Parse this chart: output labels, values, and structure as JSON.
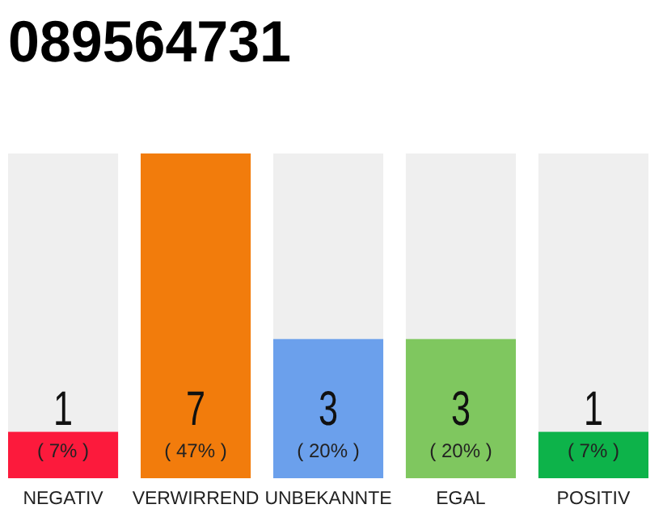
{
  "chart_data": {
    "type": "bar",
    "title": "089564731",
    "categories": [
      "NEGATIV",
      "VERWIRREND",
      "UNBEKANNTE",
      "EGAL",
      "POSITIV"
    ],
    "values": [
      1,
      7,
      3,
      3,
      1
    ],
    "colors": [
      "#fc1a3c",
      "#f27c0c",
      "#6ba0ec",
      "#7fc75f",
      "#0db34a"
    ],
    "ylim": [
      0,
      7
    ],
    "data_labels": true,
    "tick_labels": "x",
    "annotations": [
      {
        "text": "( 7% )",
        "x": "NEGATIV",
        "y": 0
      },
      {
        "text": "( 47% )",
        "x": "VERWIRREND",
        "y": 0
      },
      {
        "text": "( 20% )",
        "x": "UNBEKANNTE",
        "y": 0
      },
      {
        "text": "( 20% )",
        "x": "EGAL",
        "y": 0
      },
      {
        "text": "( 7% )",
        "x": "POSITIV",
        "y": 0
      }
    ]
  }
}
